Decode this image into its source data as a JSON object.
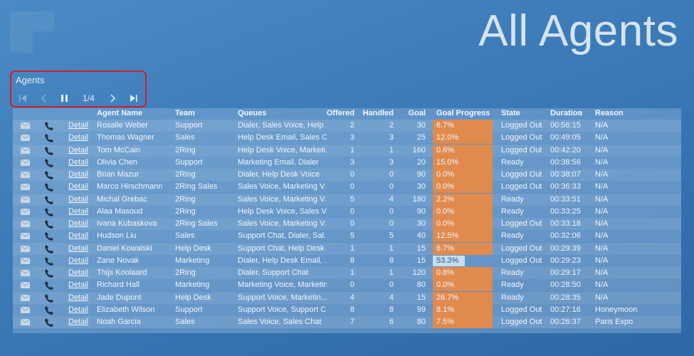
{
  "header": {
    "title": "All Agents"
  },
  "panel": {
    "title": "Agents",
    "pager": "1/4"
  },
  "table": {
    "columns": [
      "Agent Name",
      "Team",
      "Queues",
      "Offered",
      "Handled",
      "Goal",
      "Goal Progress",
      "State",
      "Duration",
      "Reason"
    ],
    "detail_label": "Detail",
    "rows": [
      [
        "Rosalie Weber",
        "Support",
        "Dialer, Sales Voice, Help ...",
        2,
        2,
        30,
        "6.7%",
        "Logged Out",
        "00:56:15",
        "N/A"
      ],
      [
        "Thomas Wagner",
        "Sales",
        "Help Desk Email, Sales C...",
        3,
        3,
        25,
        "12.0%",
        "Logged Out",
        "00:49:05",
        "N/A"
      ],
      [
        "Tom McCain",
        "2Ring",
        "Help Desk Voice, Marketi...",
        1,
        1,
        160,
        "0.6%",
        "Logged Out",
        "00:42:20",
        "N/A"
      ],
      [
        "Olivia Chen",
        "Support",
        "Marketing Email, Dialer",
        3,
        3,
        20,
        "15.0%",
        "Ready",
        "00:38:56",
        "N/A"
      ],
      [
        "Brian Mazur",
        "2Ring",
        "Dialer, Help Desk Voice",
        0,
        0,
        90,
        "0.0%",
        "Logged Out",
        "00:38:07",
        "N/A"
      ],
      [
        "Marco Hirschmann",
        "2Ring Sales",
        "Sales Voice, Marketing V...",
        0,
        0,
        30,
        "0.0%",
        "Logged Out",
        "00:36:33",
        "N/A"
      ],
      [
        "Michal Grebac",
        "2Ring",
        "Sales Voice, Marketing V...",
        5,
        4,
        180,
        "2.2%",
        "Ready",
        "00:33:51",
        "N/A"
      ],
      [
        "Alaa Masoud",
        "2Ring",
        "Help Desk Voice, Sales V...",
        0,
        0,
        90,
        "0.0%",
        "Ready",
        "00:33:25",
        "N/A"
      ],
      [
        "Ivana Kubaskova",
        "2Ring Sales",
        "Sales Voice, Marketing V...",
        0,
        0,
        30,
        "0.0%",
        "Logged Out",
        "00:33:18",
        "N/A"
      ],
      [
        "Hudson Liu",
        "Sales",
        "Support Chat, Dialer, Sal...",
        5,
        5,
        40,
        "12.5%",
        "Ready",
        "00:32:06",
        "N/A"
      ],
      [
        "Daniel Kowalski",
        "Help Desk",
        "Support Chat, Help Desk ...",
        1,
        1,
        15,
        "6.7%",
        "Logged Out",
        "00:29:39",
        "N/A"
      ],
      [
        "Zane Novak",
        "Marketing",
        "Dialer, Help Desk Email, ...",
        8,
        8,
        15,
        "53.3%",
        "Logged Out",
        "00:29:23",
        "N/A"
      ],
      [
        "Thijs Koolaard",
        "2Ring",
        "Dialer, Support Chat",
        1,
        1,
        120,
        "0.8%",
        "Ready",
        "00:29:17",
        "N/A"
      ],
      [
        "Richard Hall",
        "Marketing",
        "Marketing Voice, Marketin...",
        0,
        0,
        80,
        "0.0%",
        "Ready",
        "00:28:50",
        "N/A"
      ],
      [
        "Jade Dupont",
        "Help Desk",
        "Support Voice, Marketin...",
        4,
        4,
        15,
        "26.7%",
        "Ready",
        "00:28:35",
        "N/A"
      ],
      [
        "Elizabeth Wilson",
        "Support",
        "Support Voice, Support C...",
        8,
        8,
        99,
        "8.1%",
        "Logged Out",
        "00:27:16",
        "Honeymoon"
      ],
      [
        "Noah Garcia",
        "Sales",
        "Sales Voice, Sales Chat",
        7,
        6,
        80,
        "7.5%",
        "Logged Out",
        "00:26:37",
        "Paris Expo"
      ]
    ]
  }
}
